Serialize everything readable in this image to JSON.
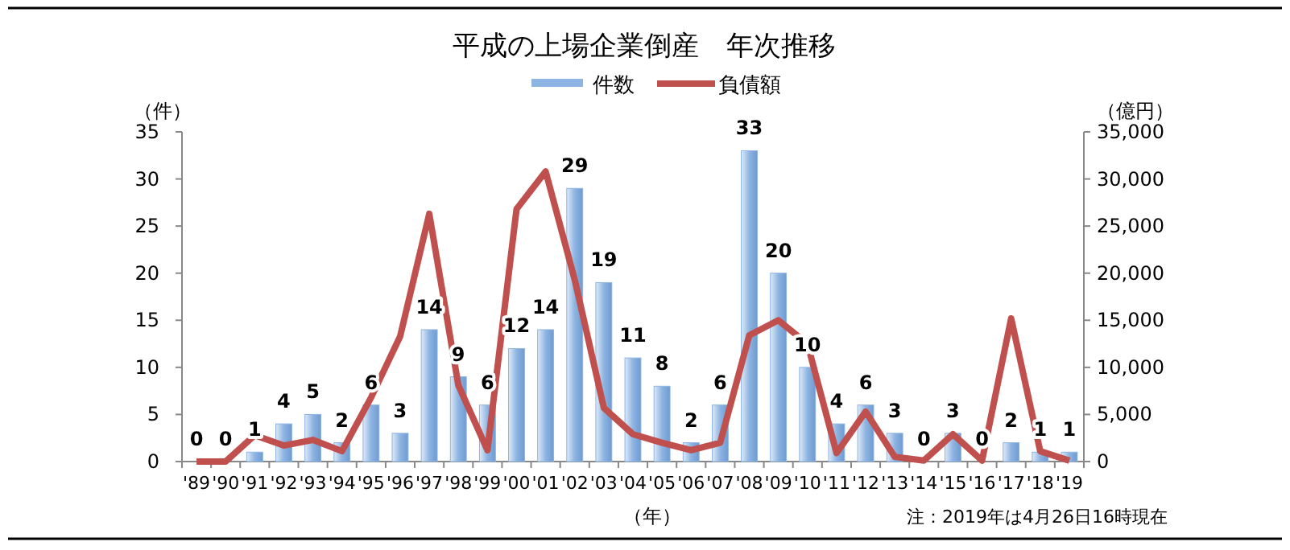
{
  "chart_data": {
    "type": "bar",
    "title": "平成の上場企業倒産　年次推移",
    "ylabel": "（件）",
    "y2label": "（億円）",
    "xlabel": "（年）",
    "annotations": [
      "注：2019年は4月26日16時現在"
    ],
    "categories": [
      "'89",
      "'90",
      "'91",
      "'92",
      "'93",
      "'94",
      "'95",
      "'96",
      "'97",
      "'98",
      "'99",
      "'00",
      "'01",
      "'02",
      "'03",
      "'04",
      "'05",
      "'06",
      "'07",
      "'08",
      "'09",
      "'10",
      "'11",
      "'12",
      "'13",
      "'14",
      "'15",
      "'16",
      "'17",
      "'18",
      "'19"
    ],
    "series": [
      {
        "name": "件数",
        "color": "#8db4e2",
        "data_labels": true,
        "values": [
          0,
          0,
          1,
          4,
          5,
          2,
          6,
          3,
          14,
          9,
          6,
          12,
          14,
          29,
          19,
          11,
          8,
          2,
          6,
          33,
          20,
          10,
          4,
          6,
          3,
          0,
          3,
          0,
          2,
          1,
          1
        ]
      },
      {
        "name": "負債額",
        "type": "line",
        "axis": "y2",
        "color": "#c0504d",
        "values": [
          0,
          0,
          2800,
          1700,
          2300,
          1100,
          6800,
          13300,
          26300,
          8100,
          1200,
          26800,
          30800,
          19300,
          5700,
          2900,
          2000,
          1200,
          2000,
          13400,
          15000,
          12500,
          900,
          5300,
          500,
          100,
          2900,
          100,
          15200,
          1100,
          100
        ]
      }
    ],
    "ylim": [
      0,
      35
    ],
    "yticks": [
      0,
      5,
      10,
      15,
      20,
      25,
      30,
      35
    ],
    "y2lim": [
      0,
      35000
    ],
    "y2ticks": [
      {
        "value": 0,
        "label": "0"
      },
      {
        "value": 5000,
        "label": "5,000"
      },
      {
        "value": 10000,
        "label": "10,000"
      },
      {
        "value": 15000,
        "label": "15,000"
      },
      {
        "value": 20000,
        "label": "20,000"
      },
      {
        "value": 25000,
        "label": "25,000"
      },
      {
        "value": 30000,
        "label": "30,000"
      },
      {
        "value": 35000,
        "label": "35,000"
      }
    ],
    "legend": "top",
    "grid": false
  }
}
